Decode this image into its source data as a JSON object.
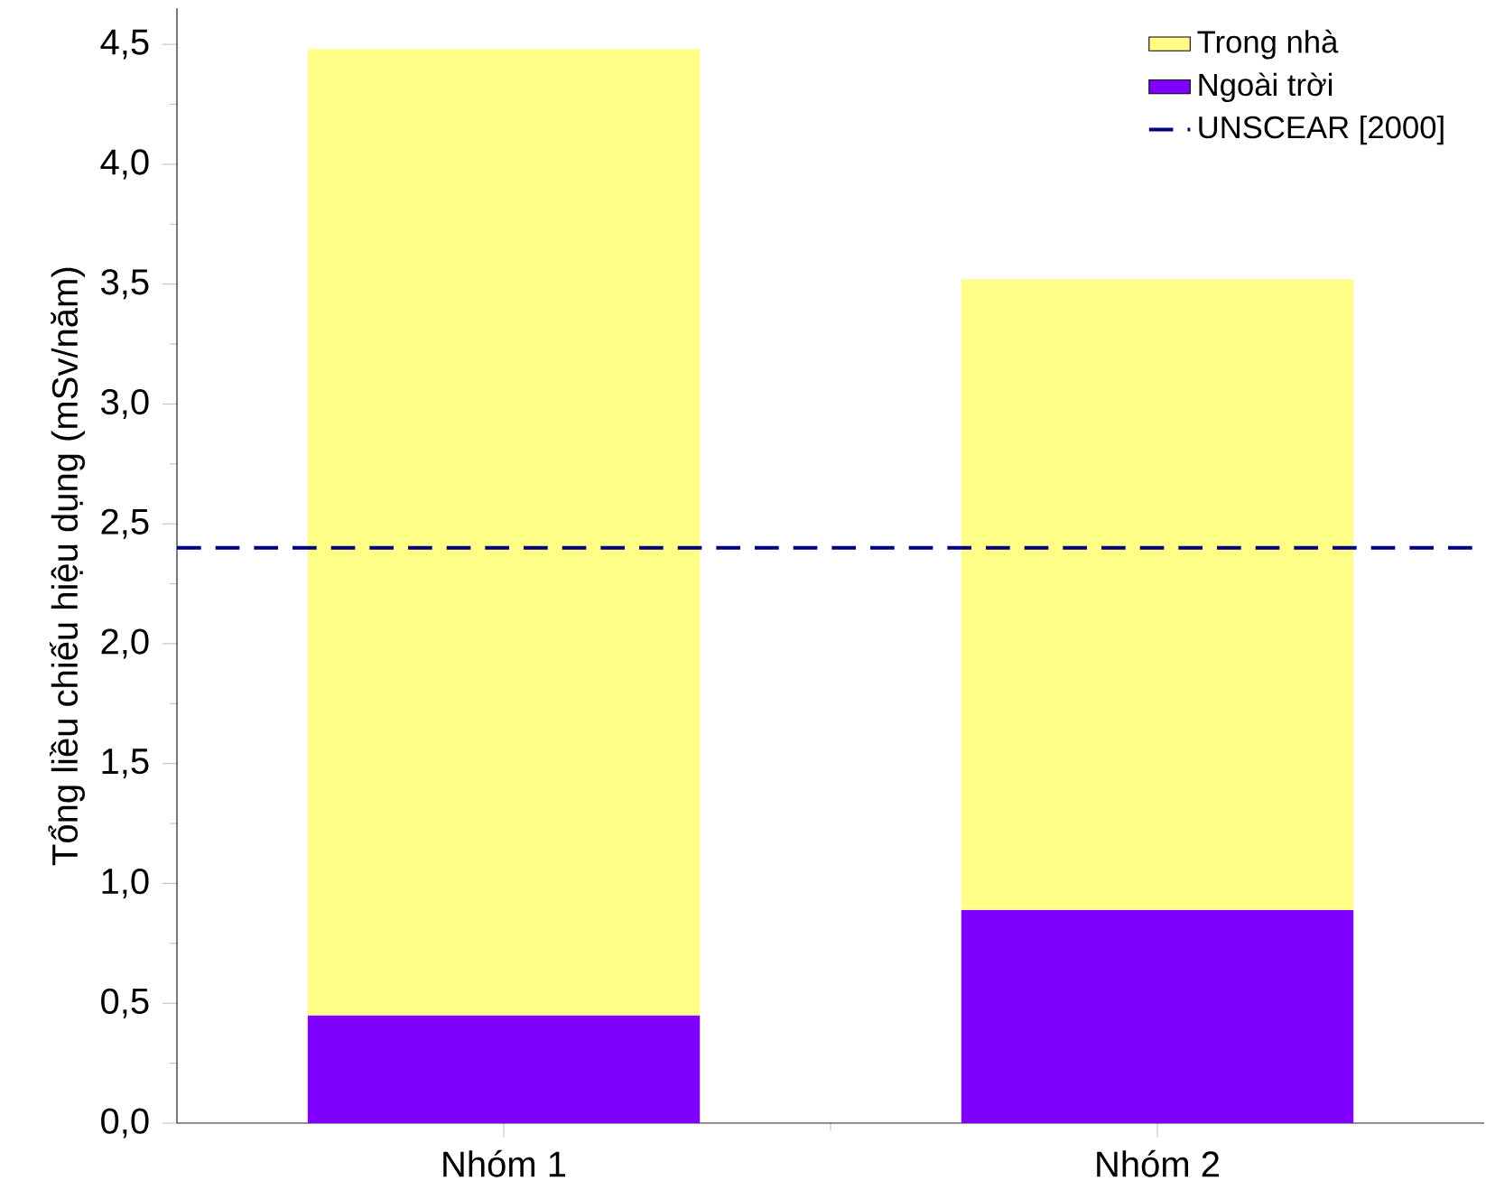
{
  "chart_data": {
    "type": "bar",
    "stacked": true,
    "ylabel": "Tổng liều chiếu hiệu dụng (mSv/năm)",
    "categories": [
      "Nhóm 1",
      "Nhóm 2"
    ],
    "series": [
      {
        "name": "Ngoài trời",
        "color": "#8000ff",
        "values": [
          0.45,
          0.89
        ]
      },
      {
        "name": "Trong nhà",
        "color": "#ffff88",
        "values": [
          4.03,
          2.63
        ]
      }
    ],
    "ylim": [
      0,
      4.65
    ],
    "yticks": [
      {
        "value": 0,
        "label": "0,0"
      },
      {
        "value": 0.5,
        "label": "0,5"
      },
      {
        "value": 1,
        "label": "1,0"
      },
      {
        "value": 1.5,
        "label": "1,5"
      },
      {
        "value": 2,
        "label": "2,0"
      },
      {
        "value": 2.5,
        "label": "2,5"
      },
      {
        "value": 3,
        "label": "3,0"
      },
      {
        "value": 3.5,
        "label": "3,5"
      },
      {
        "value": 4,
        "label": "4,0"
      },
      {
        "value": 4.5,
        "label": "4,5"
      }
    ],
    "ref_lines": [
      {
        "axis": "y",
        "value": 2.4,
        "label": "UNSCEAR [2000]",
        "color": "#000080",
        "line_style": "dashed"
      }
    ],
    "legend": "top right",
    "grid": false
  }
}
